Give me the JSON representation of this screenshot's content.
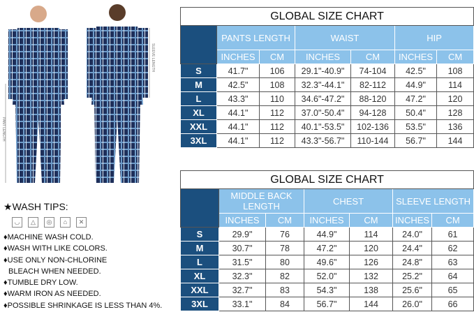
{
  "colors": {
    "navy": "#1b4f7e",
    "light_blue": "#8cc2ea",
    "plaid": "#1e2f5a"
  },
  "figure": {
    "sleeve_label": "SLEEVE LENGTH",
    "pant_label": "PANT LENGTH"
  },
  "wash": {
    "title": "WASH TIPS:",
    "icons": [
      "machine-wash-icon",
      "non-chlorine-bleach-icon",
      "tumble-dry-icon",
      "iron-icon",
      "do-not-dry-clean-icon"
    ],
    "items": [
      "MACHINE WASH COLD.",
      "WASH WITH LIKE COLORS.",
      "USE ONLY NON-CHLORINE",
      "BLEACH WHEN NEEDED.",
      "TUMBLE DRY LOW.",
      "WARM IRON AS NEEDED.",
      "POSSIBLE SHRINKAGE IS LESS THAN 4%."
    ]
  },
  "chart1": {
    "title": "GLOBAL SIZE CHART",
    "groups": [
      "PANTS LENGTH",
      "WAIST",
      "HIP"
    ],
    "units": [
      "INCHES",
      "CM",
      "INCHES",
      "CM",
      "INCHES",
      "CM"
    ],
    "rows": [
      [
        "S",
        "41.7\"",
        "106",
        "29.1\"-40.9\"",
        "74-104",
        "42.5\"",
        "108"
      ],
      [
        "M",
        "42.5\"",
        "108",
        "32.3\"-44.1\"",
        "82-112",
        "44.9\"",
        "114"
      ],
      [
        "L",
        "43.3\"",
        "110",
        "34.6\"-47.2\"",
        "88-120",
        "47.2\"",
        "120"
      ],
      [
        "XL",
        "44.1\"",
        "112",
        "37.0\"-50.4\"",
        "94-128",
        "50.4\"",
        "128"
      ],
      [
        "XXL",
        "44.1\"",
        "112",
        "40.1\"-53.5\"",
        "102-136",
        "53.5\"",
        "136"
      ],
      [
        "3XL",
        "44.1\"",
        "112",
        "43.3\"-56.7\"",
        "110-144",
        "56.7\"",
        "144"
      ]
    ]
  },
  "chart2": {
    "title": "GLOBAL SIZE CHART",
    "groups": [
      "MIDDLE BACK LENGTH",
      "CHEST",
      "SLEEVE LENGTH"
    ],
    "units": [
      "INCHES",
      "CM",
      "INCHES",
      "CM",
      "INCHES",
      "CM"
    ],
    "rows": [
      [
        "S",
        "29.9\"",
        "76",
        "44.9\"",
        "114",
        "24.0\"",
        "61"
      ],
      [
        "M",
        "30.7\"",
        "78",
        "47.2\"",
        "120",
        "24.4\"",
        "62"
      ],
      [
        "L",
        "31.5\"",
        "80",
        "49.6\"",
        "126",
        "24.8\"",
        "63"
      ],
      [
        "XL",
        "32.3\"",
        "82",
        "52.0\"",
        "132",
        "25.2\"",
        "64"
      ],
      [
        "XXL",
        "32.7\"",
        "83",
        "54.3\"",
        "138",
        "25.6\"",
        "65"
      ],
      [
        "3XL",
        "33.1\"",
        "84",
        "56.7\"",
        "144",
        "26.0\"",
        "66"
      ]
    ]
  }
}
